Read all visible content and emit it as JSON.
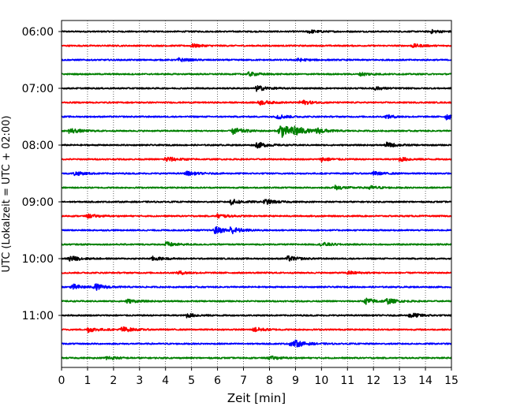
{
  "chart_data": {
    "type": "line",
    "title": "",
    "xlabel": "Zeit  [min]",
    "ylabel": "UTC (Lokalzeit = UTC + 02:00)",
    "xlim": [
      0,
      15
    ],
    "x_ticks": [
      "0",
      "1",
      "2",
      "3",
      "4",
      "5",
      "6",
      "7",
      "8",
      "9",
      "10",
      "11",
      "12",
      "13",
      "14",
      "15"
    ],
    "y_ticks": [
      {
        "label": "06:00",
        "row": 0
      },
      {
        "label": "07:00",
        "row": 4
      },
      {
        "label": "08:00",
        "row": 8
      },
      {
        "label": "09:00",
        "row": 12
      },
      {
        "label": "10:00",
        "row": 16
      },
      {
        "label": "11:00",
        "row": 20
      }
    ],
    "grid": "vertical dotted lines at each minute",
    "row_interval_minutes": 15,
    "rows": [
      {
        "start": "06:00",
        "color": "#000000",
        "events": [
          {
            "t": 9.5,
            "a": 0.3
          },
          {
            "t": 14.2,
            "a": 0.3
          }
        ]
      },
      {
        "start": "06:15",
        "color": "#ff0000",
        "events": [
          {
            "t": 5.0,
            "a": 0.3
          },
          {
            "t": 13.5,
            "a": 0.3
          }
        ]
      },
      {
        "start": "06:30",
        "color": "#0000ff",
        "events": [
          {
            "t": 4.5,
            "a": 0.3
          },
          {
            "t": 9.0,
            "a": 0.3
          }
        ]
      },
      {
        "start": "06:45",
        "color": "#008000",
        "events": [
          {
            "t": 7.2,
            "a": 0.35
          },
          {
            "t": 11.5,
            "a": 0.3
          }
        ]
      },
      {
        "start": "07:00",
        "color": "#000000",
        "events": [
          {
            "t": 7.5,
            "a": 0.5
          },
          {
            "t": 12.0,
            "a": 0.3
          }
        ]
      },
      {
        "start": "07:15",
        "color": "#ff0000",
        "events": [
          {
            "t": 7.6,
            "a": 0.4
          },
          {
            "t": 9.2,
            "a": 0.45
          }
        ]
      },
      {
        "start": "07:30",
        "color": "#0000ff",
        "events": [
          {
            "t": 8.3,
            "a": 0.4
          },
          {
            "t": 12.5,
            "a": 0.3
          },
          {
            "t": 14.8,
            "a": 0.5
          }
        ]
      },
      {
        "start": "07:45",
        "color": "#008000",
        "events": [
          {
            "t": 0.3,
            "a": 0.5
          },
          {
            "t": 6.6,
            "a": 0.6
          },
          {
            "t": 8.4,
            "a": 1.4
          },
          {
            "t": 8.9,
            "a": 0.9
          },
          {
            "t": 9.8,
            "a": 0.5
          }
        ]
      },
      {
        "start": "08:00",
        "color": "#000000",
        "events": [
          {
            "t": 7.5,
            "a": 0.5
          },
          {
            "t": 12.5,
            "a": 0.45
          }
        ]
      },
      {
        "start": "08:15",
        "color": "#ff0000",
        "events": [
          {
            "t": 4.0,
            "a": 0.5
          },
          {
            "t": 10.0,
            "a": 0.35
          },
          {
            "t": 13.0,
            "a": 0.35
          }
        ]
      },
      {
        "start": "08:30",
        "color": "#0000ff",
        "events": [
          {
            "t": 0.5,
            "a": 0.35
          },
          {
            "t": 4.8,
            "a": 0.35
          },
          {
            "t": 12.0,
            "a": 0.3
          }
        ]
      },
      {
        "start": "08:45",
        "color": "#008000",
        "events": [
          {
            "t": 10.5,
            "a": 0.4
          },
          {
            "t": 11.8,
            "a": 0.35
          }
        ]
      },
      {
        "start": "09:00",
        "color": "#000000",
        "events": [
          {
            "t": 6.5,
            "a": 0.5
          },
          {
            "t": 7.8,
            "a": 0.45
          }
        ]
      },
      {
        "start": "09:15",
        "color": "#ff0000",
        "events": [
          {
            "t": 1.0,
            "a": 0.3
          },
          {
            "t": 6.0,
            "a": 0.35
          }
        ]
      },
      {
        "start": "09:30",
        "color": "#0000ff",
        "events": [
          {
            "t": 5.9,
            "a": 0.65
          },
          {
            "t": 6.5,
            "a": 0.55
          }
        ]
      },
      {
        "start": "09:45",
        "color": "#008000",
        "events": [
          {
            "t": 4.0,
            "a": 0.45
          },
          {
            "t": 10.0,
            "a": 0.35
          }
        ]
      },
      {
        "start": "10:00",
        "color": "#000000",
        "events": [
          {
            "t": 0.3,
            "a": 0.5
          },
          {
            "t": 3.5,
            "a": 0.35
          },
          {
            "t": 8.7,
            "a": 0.45
          }
        ]
      },
      {
        "start": "10:15",
        "color": "#ff0000",
        "events": [
          {
            "t": 4.5,
            "a": 0.3
          },
          {
            "t": 11.0,
            "a": 0.3
          }
        ]
      },
      {
        "start": "10:30",
        "color": "#0000ff",
        "events": [
          {
            "t": 0.4,
            "a": 0.5
          },
          {
            "t": 1.3,
            "a": 0.5
          }
        ]
      },
      {
        "start": "10:45",
        "color": "#008000",
        "events": [
          {
            "t": 2.5,
            "a": 0.35
          },
          {
            "t": 11.7,
            "a": 0.55
          },
          {
            "t": 12.5,
            "a": 0.45
          }
        ]
      },
      {
        "start": "11:00",
        "color": "#000000",
        "events": [
          {
            "t": 4.8,
            "a": 0.35
          },
          {
            "t": 13.4,
            "a": 0.5
          }
        ]
      },
      {
        "start": "11:15",
        "color": "#ff0000",
        "events": [
          {
            "t": 1.0,
            "a": 0.45
          },
          {
            "t": 2.3,
            "a": 0.5
          },
          {
            "t": 7.4,
            "a": 0.4
          }
        ]
      },
      {
        "start": "11:30",
        "color": "#0000ff",
        "events": [
          {
            "t": 8.8,
            "a": 0.4
          },
          {
            "t": 9.0,
            "a": 0.35
          }
        ]
      },
      {
        "start": "11:45",
        "color": "#008000",
        "events": [
          {
            "t": 1.7,
            "a": 0.35
          },
          {
            "t": 8.0,
            "a": 0.3
          }
        ]
      }
    ]
  }
}
